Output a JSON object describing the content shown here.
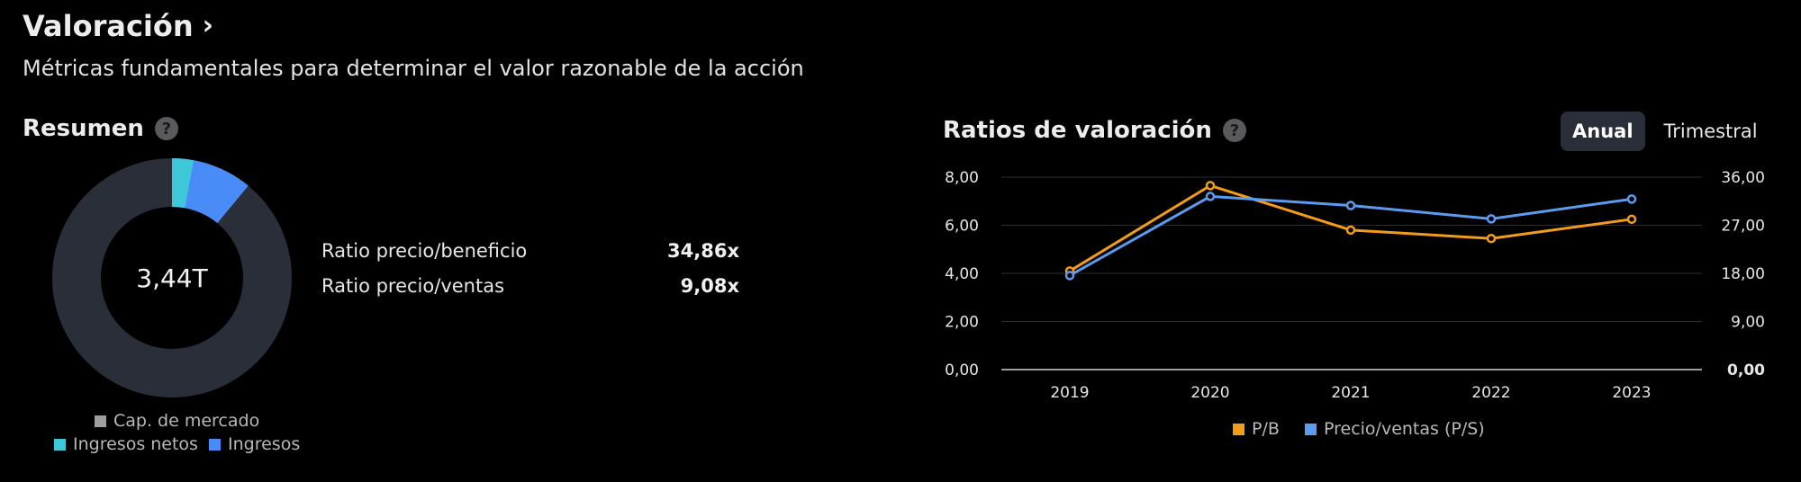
{
  "header": {
    "title": "Valoración",
    "subtitle": "Métricas fundamentales para determinar el valor razonable de la acción"
  },
  "summary": {
    "title": "Resumen",
    "center_value": "3,44T",
    "metrics": [
      {
        "label": "Ratio precio/beneficio",
        "value": "34,86x"
      },
      {
        "label": "Ratio precio/ventas",
        "value": "9,08x"
      }
    ],
    "legend": [
      {
        "name": "Cap. de mercado",
        "color": "#9e9e9e"
      },
      {
        "name": "Ingresos netos",
        "color": "#3ec6d9"
      },
      {
        "name": "Ingresos",
        "color": "#4a8cf7"
      }
    ]
  },
  "ratios": {
    "title": "Ratios de valoración",
    "toggle": {
      "options": [
        "Anual",
        "Trimestral"
      ],
      "selected": "Anual"
    }
  },
  "chart_data": [
    {
      "type": "pie",
      "donut": true,
      "center_label": "3,44T",
      "slices": [
        {
          "name": "Cap. de mercado",
          "fraction": 1.0,
          "color": "#2a2e39"
        },
        {
          "name": "Ingresos",
          "fraction": 0.11,
          "color": "#4a8cf7"
        },
        {
          "name": "Ingresos netos",
          "fraction": 0.029,
          "color": "#3ec6d9"
        }
      ]
    },
    {
      "type": "line",
      "categories": [
        "2019",
        "2020",
        "2021",
        "2022",
        "2023"
      ],
      "y_left": {
        "min": 0,
        "max": 8,
        "ticks": [
          "0,00",
          "2,00",
          "4,00",
          "6,00",
          "8,00"
        ]
      },
      "y_right": {
        "min": 0,
        "max": 36,
        "ticks": [
          "0,00",
          "9,00",
          "18,00",
          "27,00",
          "36,00"
        ]
      },
      "grid": true,
      "legend_position": "bottom",
      "series": [
        {
          "name": "P/B",
          "axis": "left",
          "color": "#f39c1a",
          "values": [
            4.1,
            7.65,
            5.8,
            5.45,
            6.25
          ]
        },
        {
          "name": "Precio/ventas (P/S)",
          "axis": "right",
          "color": "#5b9cf0",
          "values": [
            17.6,
            32.4,
            30.7,
            28.2,
            31.9
          ]
        }
      ]
    }
  ]
}
